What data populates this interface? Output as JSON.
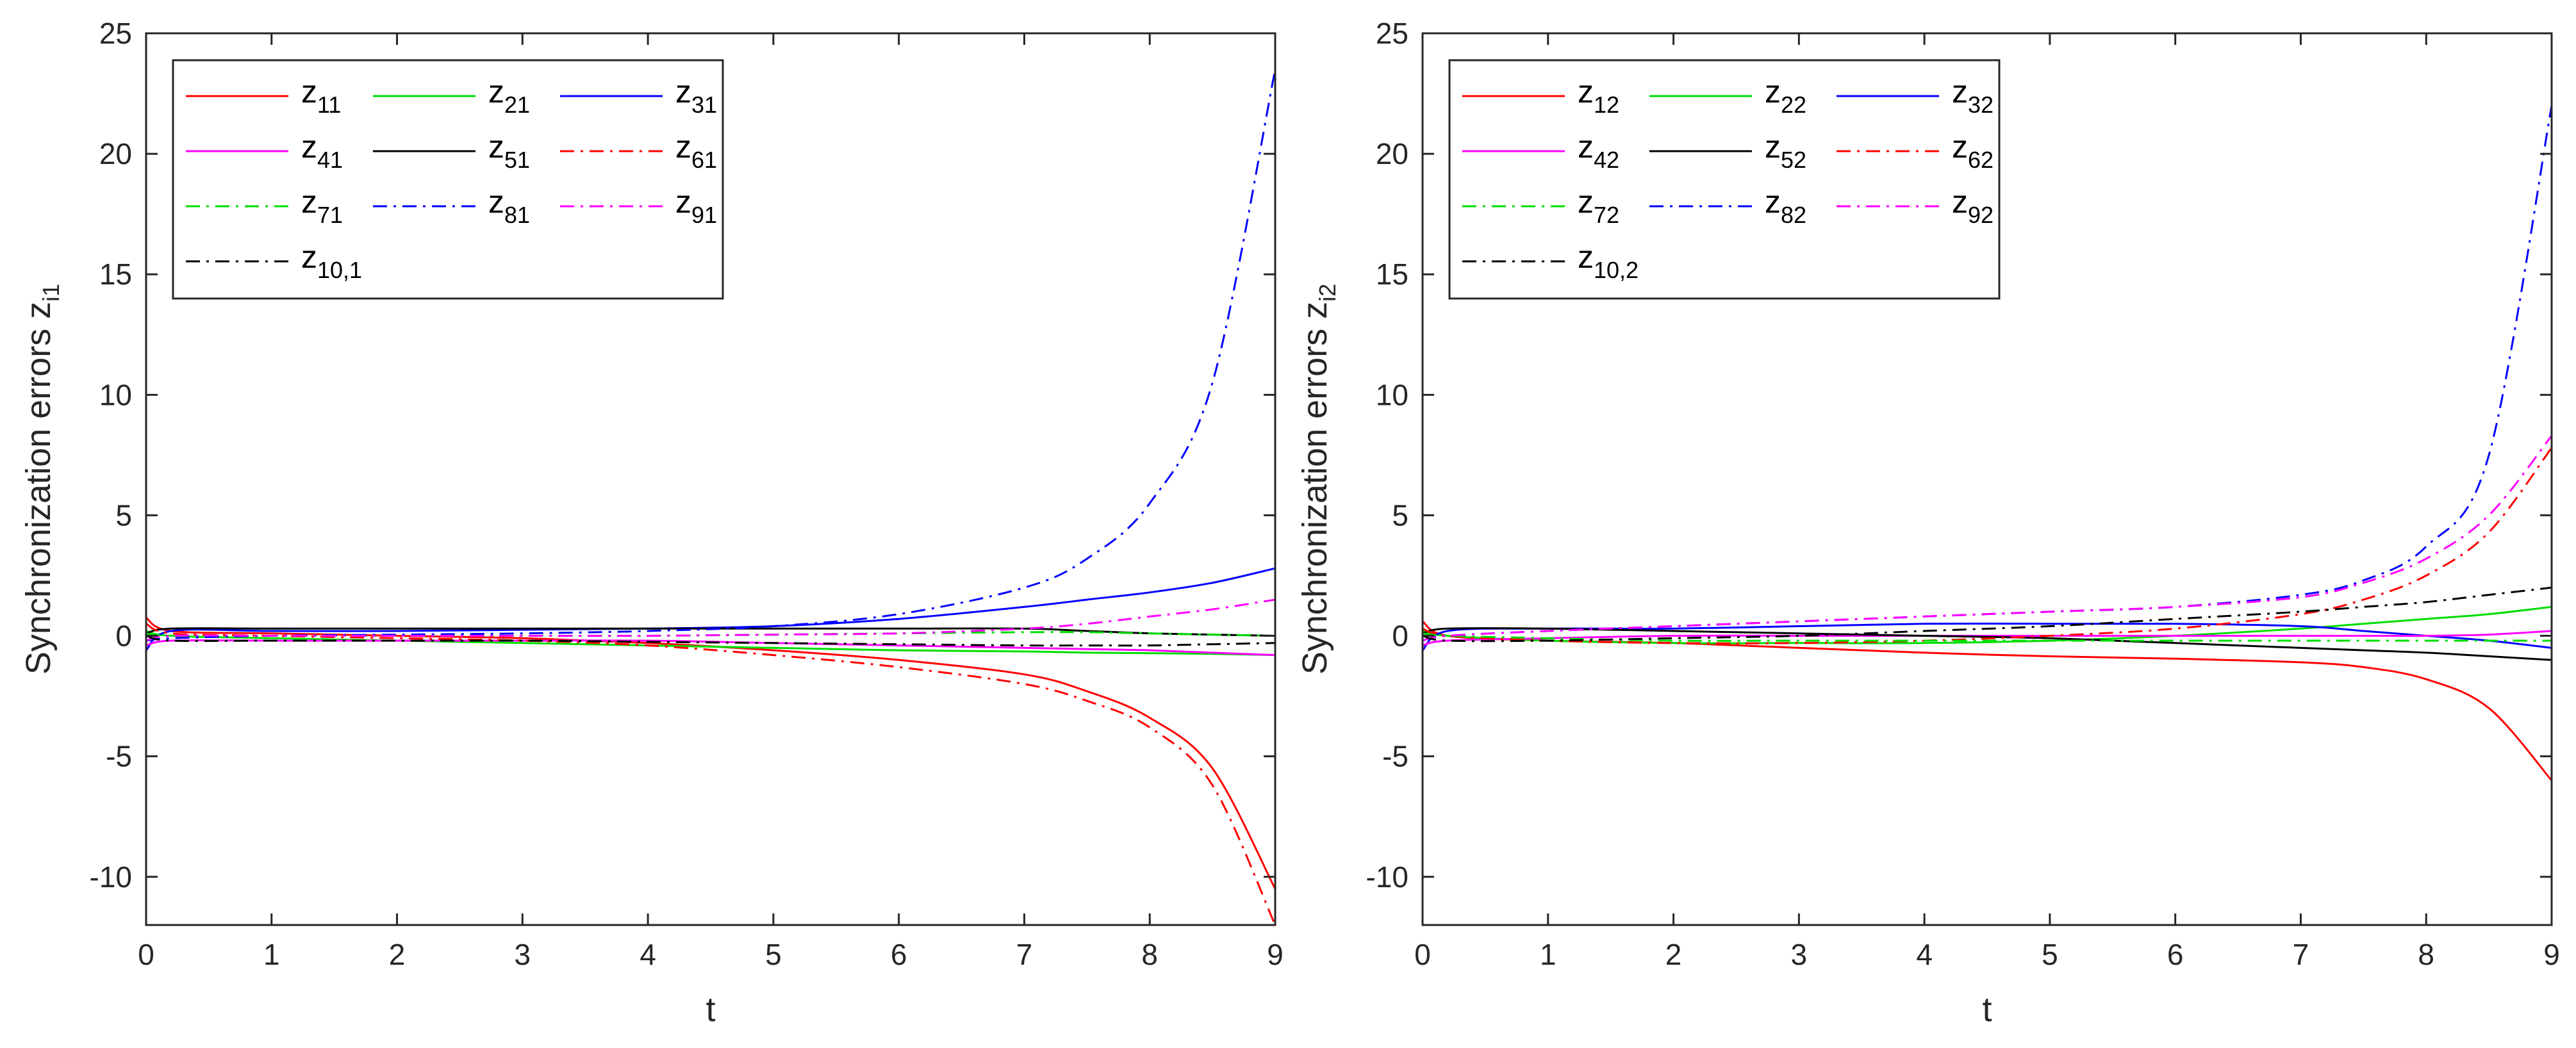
{
  "chart_data": [
    {
      "type": "line",
      "title": "",
      "xlabel": "t",
      "ylabel_main": "Synchronization errors z",
      "ylabel_sub": "i1",
      "xlim": [
        0,
        9
      ],
      "ylim": [
        -12,
        25
      ],
      "xticks": [
        0,
        1,
        2,
        3,
        4,
        5,
        6,
        7,
        8,
        9
      ],
      "xtick_labels": [
        "0",
        "1",
        "2",
        "3",
        "4",
        "5",
        "6",
        "7",
        "8",
        "9"
      ],
      "yticks": [
        -10,
        -5,
        0,
        5,
        10,
        15,
        20,
        25
      ],
      "ytick_labels": [
        "-10",
        "-5",
        "0",
        "5",
        "10",
        "15",
        "20",
        "25"
      ],
      "legend_position": "top-left",
      "x": [
        0,
        0.2,
        1,
        2,
        3,
        4,
        5,
        6,
        7,
        7.5,
        8,
        8.5,
        9
      ],
      "series": [
        {
          "name": "z",
          "sub": "11",
          "color": "#ff0000",
          "style": "solid",
          "values": [
            0.75,
            0.2,
            0.1,
            0.0,
            -0.1,
            -0.3,
            -0.6,
            -1.0,
            -1.6,
            -2.3,
            -3.4,
            -5.5,
            -10.5
          ]
        },
        {
          "name": "z",
          "sub": "21",
          "color": "#00dd00",
          "style": "solid",
          "values": [
            0.2,
            0.0,
            -0.1,
            -0.2,
            -0.3,
            -0.4,
            -0.5,
            -0.6,
            -0.65,
            -0.7,
            -0.72,
            -0.75,
            -0.8
          ]
        },
        {
          "name": "z",
          "sub": "31",
          "color": "#0000ff",
          "style": "solid",
          "values": [
            -0.6,
            0.2,
            0.2,
            0.2,
            0.25,
            0.3,
            0.4,
            0.7,
            1.2,
            1.5,
            1.8,
            2.2,
            2.8
          ]
        },
        {
          "name": "z",
          "sub": "41",
          "color": "#ff00ff",
          "style": "solid",
          "values": [
            -0.4,
            -0.2,
            -0.2,
            -0.2,
            -0.2,
            -0.2,
            -0.3,
            -0.4,
            -0.5,
            -0.55,
            -0.6,
            -0.7,
            -0.8
          ]
        },
        {
          "name": "z",
          "sub": "51",
          "color": "#000000",
          "style": "solid",
          "values": [
            0.1,
            0.3,
            0.3,
            0.3,
            0.3,
            0.3,
            0.3,
            0.3,
            0.3,
            0.2,
            0.1,
            0.05,
            0.0
          ]
        },
        {
          "name": "z",
          "sub": "61",
          "color": "#ff0000",
          "style": "dashdot",
          "values": [
            0.5,
            0.1,
            0.0,
            -0.1,
            -0.2,
            -0.4,
            -0.8,
            -1.3,
            -2.0,
            -2.7,
            -3.8,
            -6.2,
            -12.0
          ]
        },
        {
          "name": "z",
          "sub": "71",
          "color": "#00dd00",
          "style": "dashdot",
          "values": [
            0.1,
            0.0,
            0.0,
            0.0,
            0.0,
            0.0,
            0.05,
            0.1,
            0.15,
            0.15,
            0.1,
            0.05,
            0.0
          ]
        },
        {
          "name": "z",
          "sub": "81",
          "color": "#0000ff",
          "style": "dashdot",
          "values": [
            -0.2,
            -0.1,
            0.0,
            0.05,
            0.1,
            0.2,
            0.4,
            0.9,
            2.0,
            3.2,
            5.5,
            10.5,
            23.5
          ]
        },
        {
          "name": "z",
          "sub": "91",
          "color": "#ff00ff",
          "style": "dashdot",
          "values": [
            -0.2,
            0.0,
            0.0,
            0.0,
            0.0,
            0.0,
            0.05,
            0.1,
            0.3,
            0.5,
            0.8,
            1.1,
            1.5
          ]
        },
        {
          "name": "z",
          "sub": "10,1",
          "color": "#000000",
          "style": "dashdot",
          "values": [
            0.0,
            -0.2,
            -0.2,
            -0.2,
            -0.2,
            -0.25,
            -0.3,
            -0.35,
            -0.4,
            -0.4,
            -0.4,
            -0.35,
            -0.3
          ]
        }
      ]
    },
    {
      "type": "line",
      "title": "",
      "xlabel": "t",
      "ylabel_main": "Synchronization errors z",
      "ylabel_sub": "i2",
      "xlim": [
        0,
        9
      ],
      "ylim": [
        -12,
        25
      ],
      "xticks": [
        0,
        1,
        2,
        3,
        4,
        5,
        6,
        7,
        8,
        9
      ],
      "xtick_labels": [
        "0",
        "1",
        "2",
        "3",
        "4",
        "5",
        "6",
        "7",
        "8",
        "9"
      ],
      "yticks": [
        -10,
        -5,
        0,
        5,
        10,
        15,
        20,
        25
      ],
      "ytick_labels": [
        "-10",
        "-5",
        "0",
        "5",
        "10",
        "15",
        "20",
        "25"
      ],
      "legend_position": "top-left",
      "x": [
        0,
        0.2,
        1,
        2,
        3,
        4,
        5,
        6,
        7,
        7.5,
        8,
        8.5,
        9
      ],
      "series": [
        {
          "name": "z",
          "sub": "12",
          "color": "#ff0000",
          "style": "solid",
          "values": [
            0.6,
            0.0,
            -0.2,
            -0.3,
            -0.5,
            -0.7,
            -0.85,
            -0.95,
            -1.1,
            -1.3,
            -1.8,
            -3.0,
            -6.0
          ]
        },
        {
          "name": "z",
          "sub": "22",
          "color": "#00dd00",
          "style": "solid",
          "values": [
            0.2,
            0.0,
            -0.2,
            -0.3,
            -0.3,
            -0.3,
            -0.2,
            0.0,
            0.3,
            0.5,
            0.7,
            0.9,
            1.2
          ]
        },
        {
          "name": "z",
          "sub": "32",
          "color": "#0000ff",
          "style": "solid",
          "values": [
            -0.6,
            0.2,
            0.3,
            0.3,
            0.4,
            0.5,
            0.5,
            0.5,
            0.4,
            0.2,
            0.0,
            -0.2,
            -0.5
          ]
        },
        {
          "name": "z",
          "sub": "42",
          "color": "#ff00ff",
          "style": "solid",
          "values": [
            -0.4,
            -0.2,
            -0.1,
            0.0,
            0.0,
            0.0,
            0.0,
            0.0,
            0.0,
            0.0,
            0.0,
            0.05,
            0.2
          ]
        },
        {
          "name": "z",
          "sub": "52",
          "color": "#000000",
          "style": "solid",
          "values": [
            0.1,
            0.3,
            0.3,
            0.2,
            0.1,
            0.0,
            -0.1,
            -0.3,
            -0.5,
            -0.6,
            -0.7,
            -0.85,
            -1.0
          ]
        },
        {
          "name": "z",
          "sub": "62",
          "color": "#ff0000",
          "style": "dashdot",
          "values": [
            0.3,
            0.0,
            -0.2,
            -0.3,
            -0.3,
            -0.2,
            0.0,
            0.3,
            0.9,
            1.5,
            2.5,
            4.3,
            7.8
          ]
        },
        {
          "name": "z",
          "sub": "72",
          "color": "#00dd00",
          "style": "dashdot",
          "values": [
            0.1,
            0.0,
            -0.1,
            -0.2,
            -0.2,
            -0.2,
            -0.2,
            -0.2,
            -0.2,
            -0.2,
            -0.2,
            -0.2,
            -0.2
          ]
        },
        {
          "name": "z",
          "sub": "82",
          "color": "#0000ff",
          "style": "dashdot",
          "values": [
            -0.2,
            0.0,
            0.2,
            0.4,
            0.6,
            0.8,
            1.0,
            1.2,
            1.7,
            2.3,
            3.7,
            7.5,
            22.0
          ]
        },
        {
          "name": "z",
          "sub": "92",
          "color": "#ff00ff",
          "style": "dashdot",
          "values": [
            -0.2,
            0.0,
            0.2,
            0.4,
            0.6,
            0.8,
            1.0,
            1.2,
            1.6,
            2.2,
            3.2,
            5.0,
            8.3
          ]
        },
        {
          "name": "z",
          "sub": "10,2",
          "color": "#000000",
          "style": "dashdot",
          "values": [
            0.0,
            -0.2,
            -0.2,
            -0.1,
            0.0,
            0.2,
            0.4,
            0.7,
            1.0,
            1.2,
            1.4,
            1.7,
            2.0
          ]
        }
      ]
    }
  ]
}
